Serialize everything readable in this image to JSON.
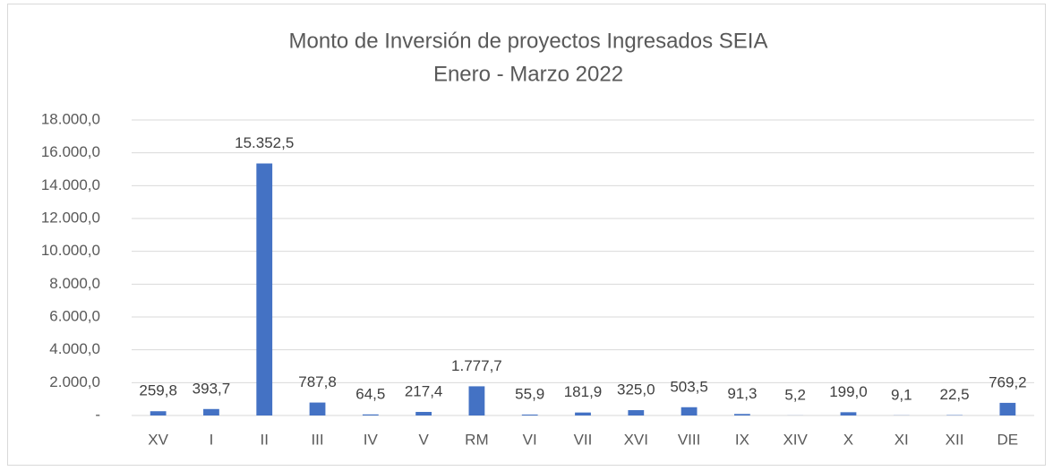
{
  "chart_data": {
    "type": "bar",
    "title": "Monto de Inversión de proyectos Ingresados SEIA",
    "subtitle": "Enero - Marzo 2022",
    "categories": [
      "XV",
      "I",
      "II",
      "III",
      "IV",
      "V",
      "RM",
      "VI",
      "VII",
      "XVI",
      "VIII",
      "IX",
      "XIV",
      "X",
      "XI",
      "XII",
      "DE"
    ],
    "values": [
      259.8,
      393.7,
      15352.5,
      787.8,
      64.5,
      217.4,
      1777.7,
      55.9,
      181.9,
      325.0,
      503.5,
      91.3,
      5.2,
      199.0,
      9.1,
      22.5,
      769.2
    ],
    "value_labels": [
      "259,8",
      "393,7",
      "15.352,5",
      "787,8",
      "64,5",
      "217,4",
      "1.777,7",
      "55,9",
      "181,9",
      "325,0",
      "503,5",
      "91,3",
      "5,2",
      "199,0",
      "9,1",
      "22,5",
      "769,2"
    ],
    "color": "#4472c4",
    "ylim": [
      0,
      18000
    ],
    "yticks": [
      {
        "value": 0,
        "label": "-"
      },
      {
        "value": 2000,
        "label": "2.000,0"
      },
      {
        "value": 4000,
        "label": "4.000,0"
      },
      {
        "value": 6000,
        "label": "6.000,0"
      },
      {
        "value": 8000,
        "label": "8.000,0"
      },
      {
        "value": 10000,
        "label": "10.000,0"
      },
      {
        "value": 12000,
        "label": "12.000,0"
      },
      {
        "value": 14000,
        "label": "14.000,0"
      },
      {
        "value": 16000,
        "label": "16.000,0"
      },
      {
        "value": 18000,
        "label": "18.000,0"
      }
    ],
    "grid": true
  }
}
